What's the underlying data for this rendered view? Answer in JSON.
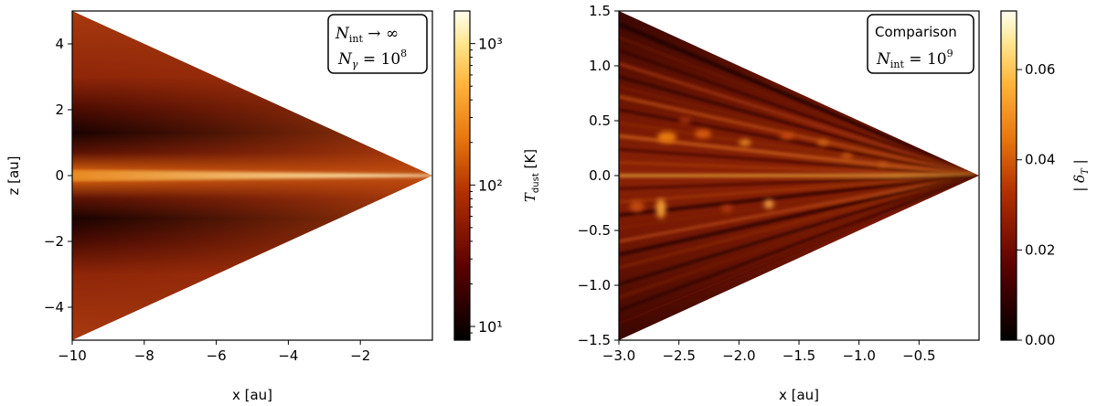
{
  "chart_data": [
    {
      "type": "heatmap",
      "title": "",
      "xlabel": "x [au]",
      "ylabel": "z [au]",
      "xlim": [
        -10,
        0
      ],
      "ylim": [
        -5,
        5
      ],
      "xticks": [
        "−10",
        "−8",
        "−6",
        "−4",
        "−2"
      ],
      "xtick_values": [
        -10,
        -8,
        -6,
        -4,
        -2
      ],
      "yticks": [
        "−4",
        "−2",
        "0",
        "2",
        "4"
      ],
      "ytick_values": [
        -4,
        -2,
        0,
        2,
        4
      ],
      "annotation": {
        "line1": "N_int → ∞",
        "line2": "N_γ = 10^8"
      },
      "colorbar": {
        "label": "T_dust [K]",
        "scale": "log",
        "range": [
          8,
          1700
        ],
        "ticks": [
          "10¹",
          "10²",
          "10³"
        ],
        "tick_values": [
          10,
          100,
          1000
        ],
        "colormap": "afmhot"
      },
      "description_of_field": "wedge-shaped disk region bounded by |z| <= 0.5|x|; midplane hot (~100-300 K) with dark cold bands at |z| ~ 1 au near outer edge, warm surface layers above"
    },
    {
      "type": "heatmap",
      "title": "",
      "xlabel": "x [au]",
      "ylabel": "",
      "xlim": [
        -3,
        0
      ],
      "ylim": [
        -1.5,
        1.5
      ],
      "xticks": [
        "−3.0",
        "−2.5",
        "−2.0",
        "−1.5",
        "−1.0",
        "−0.5"
      ],
      "xtick_values": [
        -3.0,
        -2.5,
        -2.0,
        -1.5,
        -1.0,
        -0.5
      ],
      "yticks": [
        "−1.5",
        "−1.0",
        "−0.5",
        "0.0",
        "0.5",
        "1.0",
        "1.5"
      ],
      "ytick_values": [
        -1.5,
        -1.0,
        -0.5,
        0.0,
        0.5,
        1.0,
        1.5
      ],
      "annotation": {
        "line1": "Comparison",
        "line2": "N_int = 10^9"
      },
      "colorbar": {
        "label": "|δ_T|",
        "scale": "linear",
        "range": [
          0.0,
          0.073
        ],
        "ticks": [
          "0.00",
          "0.02",
          "0.04",
          "0.06"
        ],
        "tick_values": [
          0.0,
          0.02,
          0.04,
          0.06
        ],
        "colormap": "afmhot"
      },
      "description_of_field": "relative difference map; mostly 0.01-0.02 with streaks along rays to the origin and bright patches (~0.05-0.07) near |z| ~ 0.3-0.6 au"
    }
  ]
}
